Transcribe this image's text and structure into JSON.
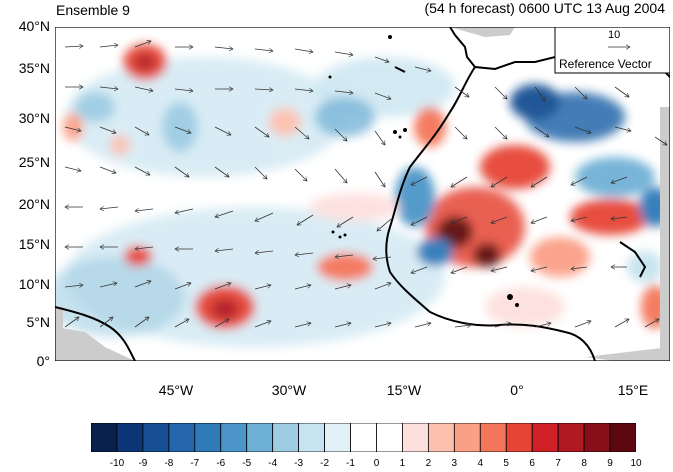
{
  "header": {
    "title_left": "Ensemble 9",
    "title_right": "(54 h forecast) 0600 UTC 13 Aug 2004"
  },
  "axes": {
    "lat_labels": [
      "40°N",
      "35°N",
      "30°N",
      "25°N",
      "20°N",
      "15°N",
      "10°N",
      "5°N",
      "0°"
    ],
    "lon_labels": [
      "45°W",
      "30°W",
      "15°W",
      "0°",
      "15°E"
    ]
  },
  "reference_vector": {
    "value": "10",
    "label": "Reference Vector"
  },
  "colorbar": {
    "labels": [
      "-10",
      "-9",
      "-8",
      "-7",
      "-6",
      "-5",
      "-4",
      "-3",
      "-2",
      "-1",
      "0",
      "1",
      "2",
      "3",
      "4",
      "5",
      "6",
      "7",
      "8",
      "9",
      "10"
    ],
    "colors": [
      "#08214c",
      "#0c3675",
      "#164f93",
      "#2466aa",
      "#2f7ab9",
      "#4b95c8",
      "#6fb0d6",
      "#9dcce3",
      "#c6e3ef",
      "#e2f1f7",
      "#ffffff",
      "#ffffff",
      "#fde0dd",
      "#fcc0ae",
      "#fb9f86",
      "#f4765a",
      "#e64535",
      "#cf2028",
      "#b01822",
      "#880f19",
      "#5d0710"
    ]
  }
}
